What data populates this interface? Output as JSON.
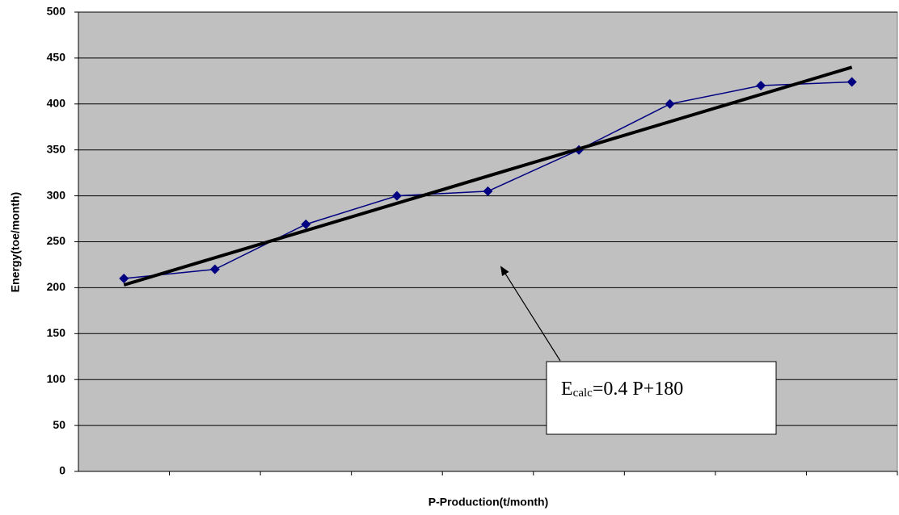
{
  "chart_data": {
    "type": "line",
    "x_label": "P-Production(t/month)",
    "y_label": "Energy(toe/month)",
    "categories": [
      null,
      null,
      null,
      null,
      null,
      null,
      null,
      null,
      null
    ],
    "series": [
      {
        "color": "#000080",
        "values": [
          210,
          220,
          269,
          300,
          305,
          350,
          400,
          420,
          424
        ]
      }
    ],
    "trend_line": {
      "color": "#000000",
      "values": [
        203,
        440
      ]
    },
    "annotation": {
      "text": "E",
      "subscript": "calc",
      "rest": "=0.4 P+180"
    },
    "ylim": [
      0,
      500
    ],
    "yticks": [
      0,
      50,
      100,
      150,
      200,
      250,
      300,
      350,
      400,
      450,
      500
    ],
    "grid": true,
    "plot_background": "#c0c0c0"
  }
}
